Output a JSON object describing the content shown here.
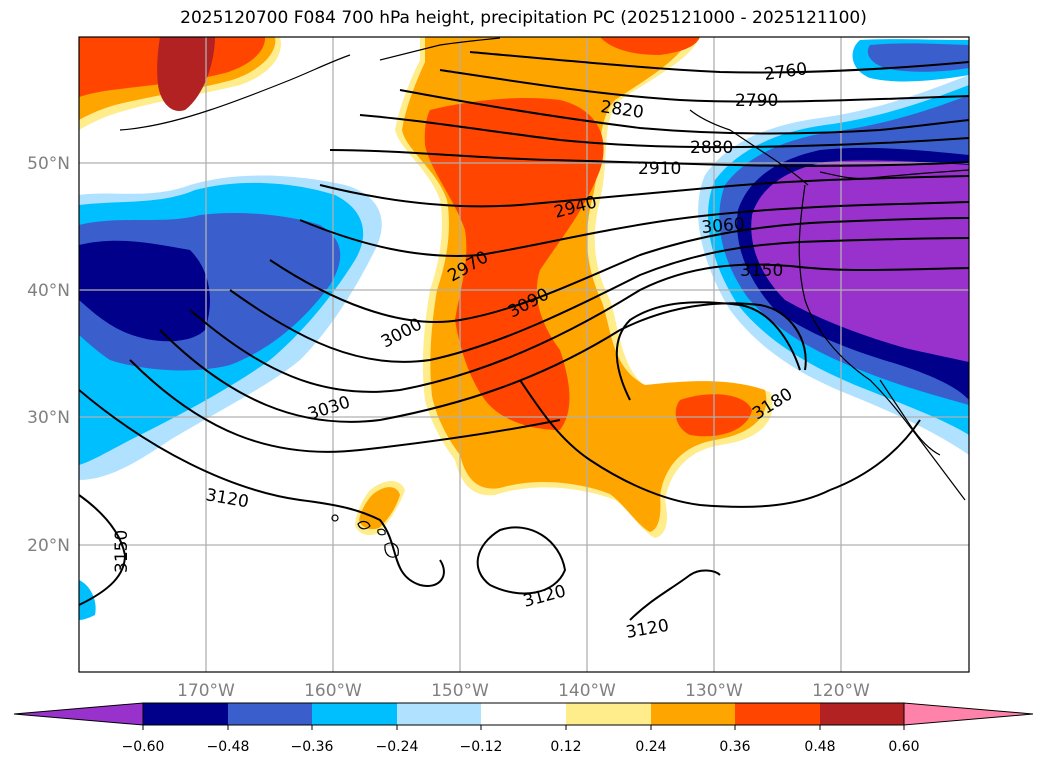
{
  "title": "2025120700 F084 700 hPa height, precipitation PC (2025121000 - 2025121100)",
  "lat_labels": [
    "50°N",
    "40°N",
    "30°N",
    "20°N"
  ],
  "lon_labels": [
    "170°W",
    "160°W",
    "150°W",
    "140°W",
    "130°W",
    "120°W"
  ],
  "colorbar": {
    "ticks": [
      "−0.60",
      "−0.48",
      "−0.36",
      "−0.24",
      "−0.12",
      "0.12",
      "0.24",
      "0.36",
      "0.48",
      "0.60"
    ],
    "colors": [
      "#9932cc",
      "#00008b",
      "#3a5fcd",
      "#00bfff",
      "#b0e2ff",
      "#ffffff",
      "#ffec8b",
      "#ffa500",
      "#ff4500",
      "#b22222",
      "#ff82ab"
    ]
  },
  "contour_labels": [
    "2760",
    "2790",
    "2820",
    "2880",
    "2910",
    "2940",
    "2970",
    "3000",
    "3030",
    "3060",
    "3090",
    "3120",
    "3120",
    "3120",
    "3150",
    "3150",
    "3180"
  ]
}
